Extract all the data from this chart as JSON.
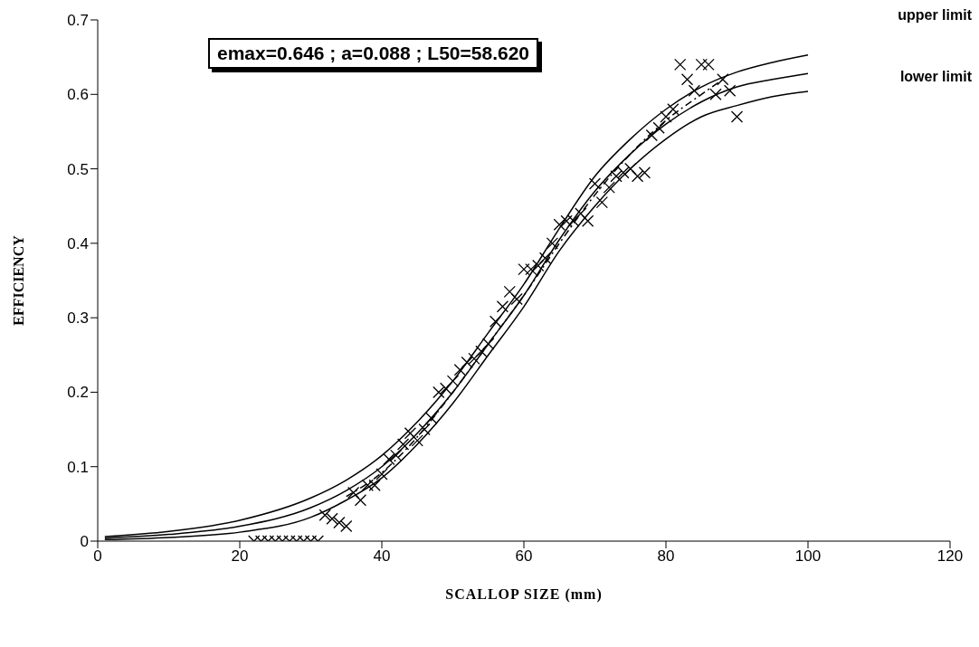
{
  "chart_data": {
    "type": "scatter",
    "xlabel": "SCALLOP SIZE (mm)",
    "ylabel": "EFFICIENCY",
    "xlim": [
      0,
      120
    ],
    "xticks": [
      0,
      20,
      40,
      60,
      80,
      100,
      120
    ],
    "ylim": [
      0,
      0.7
    ],
    "yticks": [
      0,
      0.1,
      0.2,
      0.3,
      0.4,
      0.5,
      0.6,
      0.7
    ],
    "grid": false,
    "legend": false,
    "annotations": [
      "emax=0.646 ; a=0.088 ; L50=58.620",
      "upper limit",
      "lower limit"
    ],
    "series": [
      {
        "marker": "cross",
        "color": "#000000",
        "x": [
          22,
          23,
          24,
          25,
          26,
          27,
          28,
          29,
          30,
          31,
          32,
          33,
          34,
          35,
          36,
          37,
          38,
          39,
          40,
          41,
          42,
          43,
          44,
          45,
          46,
          47,
          48,
          49,
          50,
          51,
          52,
          53,
          54,
          55,
          56,
          57,
          58,
          59,
          60,
          61,
          62,
          63,
          64,
          65,
          66,
          67,
          68,
          69,
          70,
          71,
          72,
          73,
          74,
          75,
          76,
          77,
          78,
          79,
          80,
          81,
          82,
          83,
          84,
          85,
          86,
          87,
          88,
          89,
          90
        ],
        "values": [
          0,
          0,
          0,
          0,
          0,
          0,
          0,
          0,
          0,
          0,
          0.035,
          0.03,
          0.025,
          0.02,
          0.065,
          0.055,
          0.075,
          0.075,
          0.09,
          0.11,
          0.115,
          0.13,
          0.145,
          0.135,
          0.15,
          0.165,
          0.2,
          0.205,
          0.215,
          0.23,
          0.24,
          0.245,
          0.255,
          0.265,
          0.295,
          0.315,
          0.335,
          0.325,
          0.365,
          0.365,
          0.37,
          0.38,
          0.4,
          0.425,
          0.43,
          0.43,
          0.44,
          0.43,
          0.48,
          0.455,
          0.475,
          0.49,
          0.495,
          0.5,
          0.49,
          0.495,
          0.545,
          0.555,
          0.57,
          0.58,
          0.64,
          0.62,
          0.605,
          0.64,
          0.64,
          0.6,
          0.62,
          0.605,
          0.57
        ]
      },
      {
        "type": "line",
        "line_style": "solid",
        "marker": "none",
        "color": "#000000",
        "x": [
          1,
          10,
          20,
          30,
          35,
          40,
          45,
          50,
          55,
          60,
          65,
          70,
          75,
          80,
          85,
          90,
          95,
          100
        ],
        "values": [
          0.006,
          0.013,
          0.028,
          0.058,
          0.082,
          0.115,
          0.16,
          0.215,
          0.28,
          0.345,
          0.42,
          0.49,
          0.54,
          0.58,
          0.61,
          0.63,
          0.643,
          0.653
        ]
      },
      {
        "type": "line",
        "line_style": "solid",
        "marker": "none",
        "color": "#000000",
        "x": [
          1,
          10,
          20,
          30,
          35,
          40,
          45,
          50,
          55,
          60,
          65,
          70,
          75,
          80,
          85,
          90,
          95,
          100
        ],
        "values": [
          0.004,
          0.009,
          0.02,
          0.045,
          0.068,
          0.1,
          0.145,
          0.2,
          0.265,
          0.33,
          0.405,
          0.47,
          0.52,
          0.56,
          0.59,
          0.61,
          0.62,
          0.628
        ]
      },
      {
        "type": "line",
        "line_style": "solid",
        "marker": "none",
        "color": "#000000",
        "x": [
          1,
          10,
          20,
          30,
          35,
          40,
          45,
          50,
          55,
          60,
          65,
          70,
          75,
          80,
          85,
          90,
          95,
          100
        ],
        "values": [
          0.002,
          0.005,
          0.012,
          0.032,
          0.055,
          0.085,
          0.13,
          0.185,
          0.25,
          0.315,
          0.39,
          0.45,
          0.5,
          0.54,
          0.57,
          0.585,
          0.597,
          0.604
        ]
      },
      {
        "type": "line",
        "line_style": "dashed",
        "marker": "none",
        "color": "#000000",
        "x": [
          35,
          40,
          45,
          50,
          55,
          60,
          65,
          70,
          75,
          80,
          85,
          88
        ],
        "values": [
          0.06,
          0.092,
          0.14,
          0.2,
          0.265,
          0.33,
          0.4,
          0.465,
          0.52,
          0.565,
          0.6,
          0.62
        ]
      }
    ]
  }
}
